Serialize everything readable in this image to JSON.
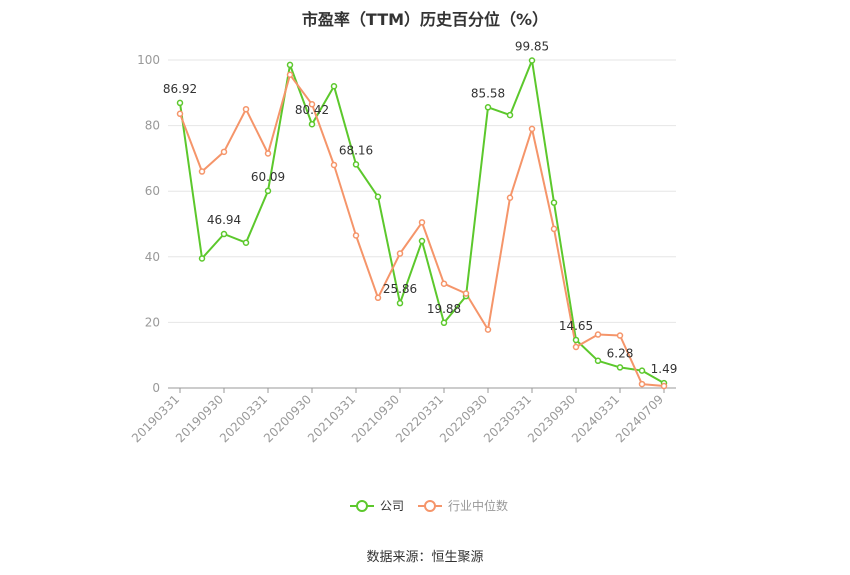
{
  "chart_data": {
    "type": "line",
    "title": "市盈率（TTM）历史百分位（%）",
    "xlabel": "",
    "ylabel": "",
    "ylim": [
      0,
      100
    ],
    "yticks": [
      "0",
      "20",
      "40",
      "60",
      "80",
      "100"
    ],
    "x_tick_labels": [
      "20190331",
      "20190930",
      "20200331",
      "20200930",
      "20210331",
      "20210930",
      "20220331",
      "20220930",
      "20230331",
      "20230930",
      "20240331",
      "20240709"
    ],
    "x": [
      "20190331",
      "20190630",
      "20190930",
      "20191231",
      "20200331",
      "20200630",
      "20200930",
      "20201231",
      "20210331",
      "20210630",
      "20210930",
      "20211231",
      "20220331",
      "20220630",
      "20220930",
      "20221231",
      "20230331",
      "20230630",
      "20230930",
      "20231231",
      "20240331",
      "20240630",
      "20240709"
    ],
    "series": [
      {
        "name": "公司",
        "color": "#5cc82c",
        "values": [
          86.92,
          39.5,
          46.94,
          44.3,
          60.09,
          98.5,
          80.42,
          92.0,
          68.16,
          58.3,
          25.86,
          44.8,
          19.88,
          28.0,
          85.58,
          83.2,
          99.85,
          56.5,
          14.65,
          8.3,
          6.28,
          5.3,
          1.49
        ]
      },
      {
        "name": "行业中位数",
        "color": "#f5956a",
        "values": [
          83.6,
          66.0,
          72.0,
          85.0,
          71.5,
          95.5,
          86.5,
          68.0,
          46.5,
          27.5,
          41.0,
          50.5,
          31.8,
          28.8,
          17.8,
          58.0,
          79.0,
          48.5,
          12.5,
          16.3,
          16.0,
          1.2,
          0.6
        ]
      }
    ],
    "data_labels": [
      {
        "series": 0,
        "index": 0,
        "text": "86.92"
      },
      {
        "series": 0,
        "index": 2,
        "text": "46.94"
      },
      {
        "series": 0,
        "index": 4,
        "text": "60.09"
      },
      {
        "series": 0,
        "index": 6,
        "text": "80.42"
      },
      {
        "series": 0,
        "index": 8,
        "text": "68.16"
      },
      {
        "series": 0,
        "index": 10,
        "text": "25.86"
      },
      {
        "series": 0,
        "index": 12,
        "text": "19.88"
      },
      {
        "series": 0,
        "index": 14,
        "text": "85.58"
      },
      {
        "series": 0,
        "index": 16,
        "text": "99.85"
      },
      {
        "series": 0,
        "index": 18,
        "text": "14.65"
      },
      {
        "series": 0,
        "index": 20,
        "text": "6.28"
      },
      {
        "series": 0,
        "index": 22,
        "text": "1.49"
      }
    ],
    "grid": true,
    "legend_position": "bottom-center"
  },
  "source": "数据来源：恒生聚源",
  "colors": {
    "grid": "#e6e6e6",
    "axis": "#999999",
    "tick_text": "#999999",
    "label_text": "#333333"
  }
}
